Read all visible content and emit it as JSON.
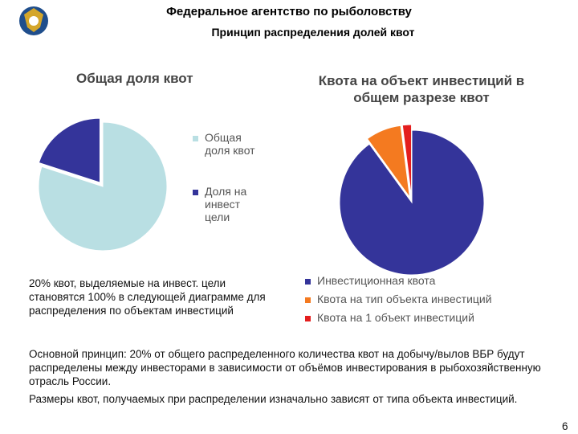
{
  "header": {
    "title": "Федеральное агентство по рыболовству",
    "subtitle": "Принцип распределения долей квот"
  },
  "chart_data": [
    {
      "type": "pie",
      "title": "Общая доля квот",
      "categories": [
        "Общая доля квот",
        "Доля на инвест цели"
      ],
      "values": [
        80,
        20
      ],
      "colors": [
        "#b9dfe3",
        "#34349a"
      ]
    },
    {
      "type": "pie",
      "title": "Квота на объект инвестиций в общем разрезе квот",
      "categories": [
        "Инвестиционная квота",
        "Квота на тип объекта инвестиций",
        "Квота на 1 объект инвестиций"
      ],
      "values": [
        90,
        8,
        2
      ],
      "colors": [
        "#34349a",
        "#f47a20",
        "#e41e1e"
      ]
    }
  ],
  "note": "20% квот, выделяемые на инвест. цели становятся 100% в следующей диаграмме для распределения по объектам инвестиций",
  "body": [
    "Основной принцип: 20% от общего распределенного количества квот на добычу/вылов ВБР будут распределены между инвесторами в зависимости от объёмов инвестирования в рыбохозяйственную отрасль России.",
    "Размеры квот, получаемых при распределении изначально зависят от типа объекта инвестиций."
  ],
  "page_number": "6"
}
